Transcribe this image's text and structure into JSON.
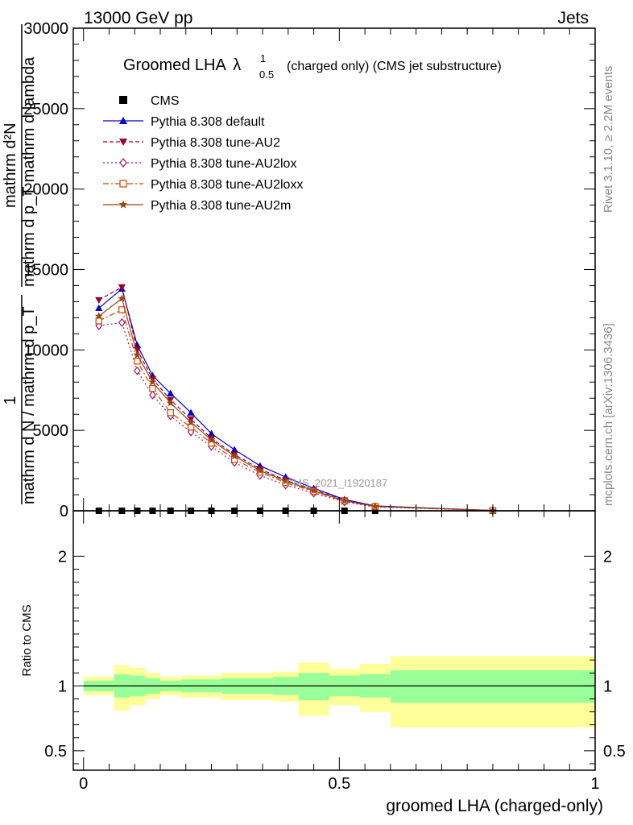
{
  "header": {
    "energy": "13000 GeV pp",
    "category": "Jets"
  },
  "side": {
    "rivet": "Rivet 3.1.10, ≥ 2.2M events",
    "mcplots": "mcplots.cern.ch [arXiv:1306.3436]"
  },
  "chart_data": [
    {
      "type": "line",
      "title_main": "Groomed LHA",
      "title_symbol": "λ",
      "title_sup": "1",
      "title_sub": "0.5",
      "title_rest": "(charged only) (CMS jet substructure)",
      "ylabel_top": "1",
      "ylabel_bottom": "mathrm d N / mathrm d p_T",
      "ylabel_numerator": "mathrm d²N",
      "ylabel_denominator": "mathrm d p_T mathrm d lambda",
      "watermark": "CMS_2021_I1920187",
      "ylim": [
        0,
        30000
      ],
      "yticks": [
        {
          "v": 0,
          "label": "0"
        },
        {
          "v": 5000,
          "label": "5000"
        },
        {
          "v": 10000,
          "label": "10000"
        },
        {
          "v": 15000,
          "label": "15000"
        },
        {
          "v": 20000,
          "label": "20000"
        },
        {
          "v": 25000,
          "label": "25000"
        },
        {
          "v": 30000,
          "label": "30000"
        }
      ],
      "xlim": [
        -0.02,
        1.0
      ],
      "legend": "top-left",
      "x": [
        0.03,
        0.075,
        0.105,
        0.135,
        0.17,
        0.21,
        0.25,
        0.295,
        0.345,
        0.395,
        0.45,
        0.51,
        0.57,
        0.8
      ],
      "cms_values": [
        0,
        0,
        0,
        0,
        0,
        0,
        0,
        0,
        0,
        0,
        0,
        0,
        0,
        0
      ],
      "series": [
        {
          "name": "CMS",
          "color": "#000000",
          "marker": "square",
          "dash": "none",
          "values": [
            0,
            0,
            0,
            0,
            0,
            0,
            0,
            0,
            0,
            0,
            0,
            0,
            0,
            0
          ]
        },
        {
          "name": "Pythia 8.308 default",
          "color": "#0000cc",
          "marker": "triangle-up",
          "dash": "none",
          "values": [
            12600,
            13800,
            10300,
            8400,
            7300,
            6100,
            4800,
            3800,
            2800,
            2100,
            1400,
            700,
            300,
            20
          ]
        },
        {
          "name": "Pythia 8.308 tune-AU2",
          "color": "#990033",
          "marker": "triangle-down",
          "dash": "5,3",
          "values": [
            13100,
            13900,
            10000,
            8200,
            6900,
            5700,
            4500,
            3500,
            2600,
            1900,
            1300,
            650,
            280,
            18
          ]
        },
        {
          "name": "Pythia 8.308 tune-AU2lox",
          "color": "#aa1166",
          "marker": "diamond-open",
          "dash": "2,3",
          "values": [
            11500,
            11700,
            8700,
            7200,
            5900,
            4900,
            4000,
            3000,
            2200,
            1600,
            1100,
            550,
            240,
            15
          ]
        },
        {
          "name": "Pythia 8.308 tune-AU2loxx",
          "color": "#cc4400",
          "marker": "square-open",
          "dash": "7,3,2,3",
          "values": [
            11800,
            12500,
            9300,
            7600,
            6100,
            5200,
            4200,
            3200,
            2400,
            1750,
            1200,
            600,
            260,
            16
          ]
        },
        {
          "name": "Pythia 8.308 tune-AU2m",
          "color": "#994411",
          "marker": "star",
          "dash": "none",
          "values": [
            12100,
            13200,
            9700,
            8000,
            6700,
            5500,
            4400,
            3400,
            2500,
            1850,
            1250,
            630,
            270,
            17
          ]
        }
      ]
    },
    {
      "type": "area",
      "ylabel": "Ratio to CMS",
      "xlabel": "groomed LHA (charged-only)",
      "ylim": [
        0.35,
        2.35
      ],
      "yticks": [
        {
          "v": 0.5,
          "label": "0.5"
        },
        {
          "v": 1,
          "label": "1"
        },
        {
          "v": 2,
          "label": "2"
        }
      ],
      "xticks": [
        {
          "v": 0,
          "label": "0"
        },
        {
          "v": 0.5,
          "label": "0.5"
        },
        {
          "v": 1,
          "label": "1"
        }
      ],
      "bins": [
        0,
        0.06,
        0.09,
        0.12,
        0.15,
        0.19,
        0.27,
        0.37,
        0.42,
        0.48,
        0.54,
        0.6,
        1.0
      ],
      "inner_band": {
        "color": "#99ff99",
        "lo": [
          0.96,
          0.91,
          0.92,
          0.94,
          0.96,
          0.95,
          0.94,
          0.93,
          0.89,
          0.92,
          0.91,
          0.87
        ],
        "hi": [
          1.04,
          1.09,
          1.08,
          1.06,
          1.04,
          1.05,
          1.06,
          1.07,
          1.1,
          1.08,
          1.09,
          1.12
        ]
      },
      "outer_band": {
        "color": "#ffff99",
        "lo": [
          0.93,
          0.81,
          0.85,
          0.9,
          0.93,
          0.91,
          0.89,
          0.88,
          0.77,
          0.85,
          0.8,
          0.68
        ],
        "hi": [
          1.07,
          1.16,
          1.14,
          1.1,
          1.07,
          1.08,
          1.1,
          1.11,
          1.18,
          1.13,
          1.17,
          1.23
        ]
      },
      "reference_line": 1
    }
  ]
}
